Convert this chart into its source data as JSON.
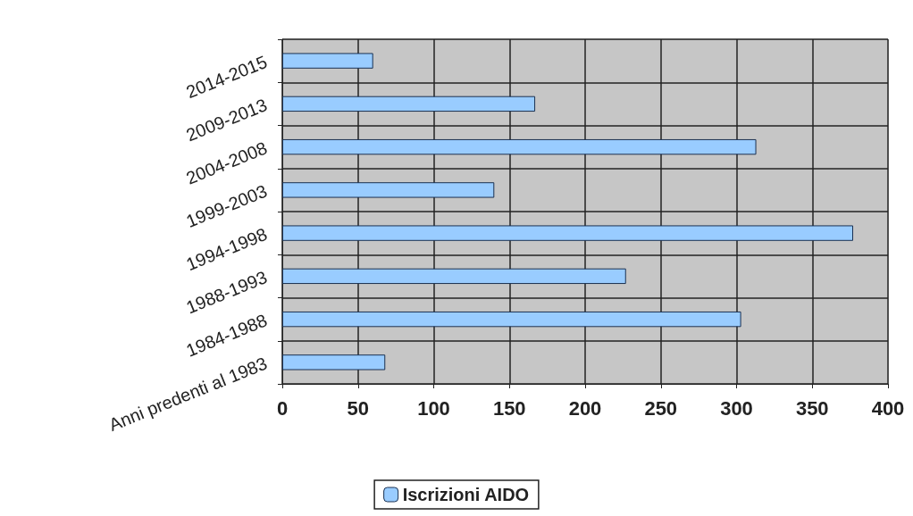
{
  "chart_data": {
    "type": "bar",
    "orientation": "horizontal",
    "categories": [
      "2014-2015",
      "2009-2013",
      "2004-2008",
      "1999-2003",
      "1994-1998",
      "1988-1993",
      "1984-1988",
      "Anni predenti al 1983"
    ],
    "series": [
      {
        "name": "Iscrizioni AIDO",
        "color": "#99ccff",
        "values": [
          60,
          167,
          313,
          140,
          377,
          227,
          303,
          68
        ]
      }
    ],
    "xlim": [
      0,
      400
    ],
    "xticks": [
      0,
      50,
      100,
      150,
      200,
      250,
      300,
      350,
      400
    ],
    "grid": true,
    "legend": "bottom"
  }
}
